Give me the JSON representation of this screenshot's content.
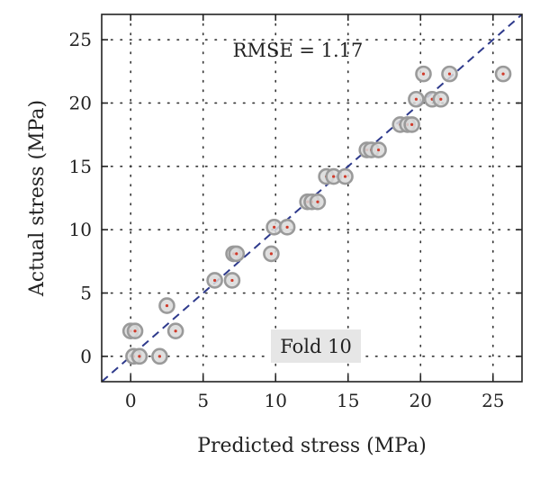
{
  "chart_data": {
    "type": "scatter",
    "xlabel": "Predicted stress (MPa)",
    "ylabel": "Actual stress (MPa)",
    "xlim": [
      -2,
      27
    ],
    "ylim": [
      -2,
      27
    ],
    "xticks": [
      0,
      5,
      10,
      15,
      20,
      25
    ],
    "yticks": [
      0,
      5,
      10,
      15,
      20,
      25
    ],
    "grid": true,
    "annotations": {
      "metric": "RMSE = 1.17",
      "fold": "Fold 10"
    },
    "reference_line": {
      "type": "identity",
      "style": "dashed",
      "color": "#2e3a8c"
    },
    "colors": {
      "marker_ring": "#9a9a9a",
      "marker_center": "#d03a2a",
      "fold_box": "#e6e6e6"
    },
    "points": [
      [
        0.0,
        2.0
      ],
      [
        0.3,
        2.0
      ],
      [
        0.2,
        0.0
      ],
      [
        0.6,
        0.0
      ],
      [
        2.0,
        0.0
      ],
      [
        3.1,
        2.0
      ],
      [
        2.5,
        4.0
      ],
      [
        5.8,
        6.0
      ],
      [
        7.0,
        6.0
      ],
      [
        7.1,
        8.1
      ],
      [
        7.3,
        8.1
      ],
      [
        9.7,
        8.1
      ],
      [
        9.9,
        10.2
      ],
      [
        10.8,
        10.2
      ],
      [
        12.2,
        12.2
      ],
      [
        12.5,
        12.2
      ],
      [
        12.9,
        12.2
      ],
      [
        13.5,
        14.2
      ],
      [
        14.0,
        14.2
      ],
      [
        14.8,
        14.2
      ],
      [
        16.3,
        16.3
      ],
      [
        16.6,
        16.3
      ],
      [
        17.1,
        16.3
      ],
      [
        18.6,
        18.3
      ],
      [
        19.1,
        18.3
      ],
      [
        19.4,
        18.3
      ],
      [
        19.7,
        20.3
      ],
      [
        20.8,
        20.3
      ],
      [
        21.4,
        20.3
      ],
      [
        20.2,
        22.3
      ],
      [
        22.0,
        22.3
      ],
      [
        25.7,
        22.3
      ]
    ]
  }
}
